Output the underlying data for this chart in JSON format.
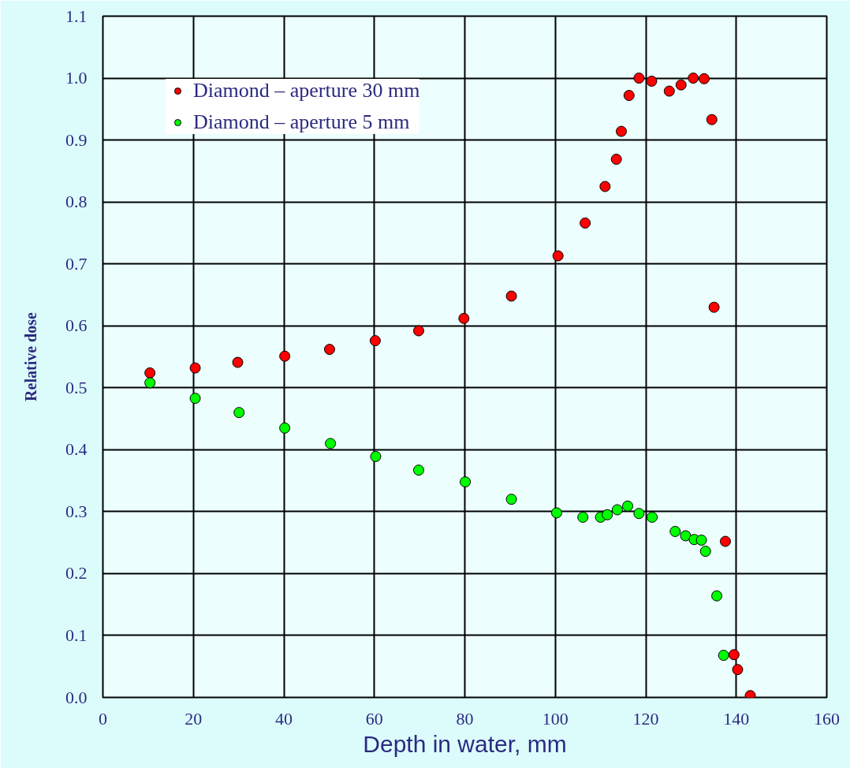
{
  "chart_data": {
    "type": "scatter",
    "xlabel": "Depth in water, mm",
    "ylabel": "Relative dose",
    "xlim": [
      0,
      160
    ],
    "xticks": [
      0,
      20,
      40,
      60,
      80,
      100,
      120,
      140,
      160
    ],
    "ylim": [
      0,
      1.1
    ],
    "yticks": [
      {
        "value": 0,
        "label": "0.0"
      },
      0.1,
      0.2,
      0.3,
      0.4,
      0.5,
      0.6,
      0.7,
      0.8,
      0.9,
      {
        "value": 1.0,
        "label": "1.0"
      },
      1.1
    ],
    "grid": true,
    "legend": "top left",
    "marker": "circle",
    "series": [
      {
        "name": "Diamond – aperture 30 mm",
        "color": "#ff0000",
        "x": [
          10.4,
          20.4,
          29.8,
          40.2,
          50.1,
          60.2,
          69.8,
          79.8,
          90.3,
          100.6,
          106.6,
          111,
          113.5,
          114.6,
          116.3,
          118.5,
          121.3,
          125.2,
          127.8,
          130.5,
          132.9,
          134.6,
          135.1,
          137.6,
          139.5,
          140.3,
          143.1
        ],
        "values": [
          0.524,
          0.532,
          0.541,
          0.551,
          0.562,
          0.576,
          0.592,
          0.612,
          0.648,
          0.713,
          0.766,
          0.825,
          0.869,
          0.914,
          0.972,
          1.0,
          0.995,
          0.979,
          0.989,
          1.0,
          0.999,
          0.933,
          0.63,
          0.252,
          0.069,
          0.045,
          0.003
        ]
      },
      {
        "name": "Diamond – aperture 5 mm",
        "color": "#00ff00",
        "x": [
          10.4,
          20.4,
          30.1,
          40.2,
          50.3,
          60.3,
          69.8,
          80.1,
          90.3,
          100.3,
          106.1,
          110,
          111.5,
          113.7,
          116,
          118.5,
          121.4,
          126.5,
          128.8,
          130.7,
          132.3,
          133.2,
          135.7,
          137.2
        ],
        "values": [
          0.508,
          0.483,
          0.46,
          0.435,
          0.41,
          0.389,
          0.367,
          0.348,
          0.32,
          0.298,
          0.291,
          0.291,
          0.295,
          0.303,
          0.309,
          0.297,
          0.291,
          0.268,
          0.261,
          0.255,
          0.254,
          0.236,
          0.164,
          0.068
        ]
      }
    ]
  }
}
